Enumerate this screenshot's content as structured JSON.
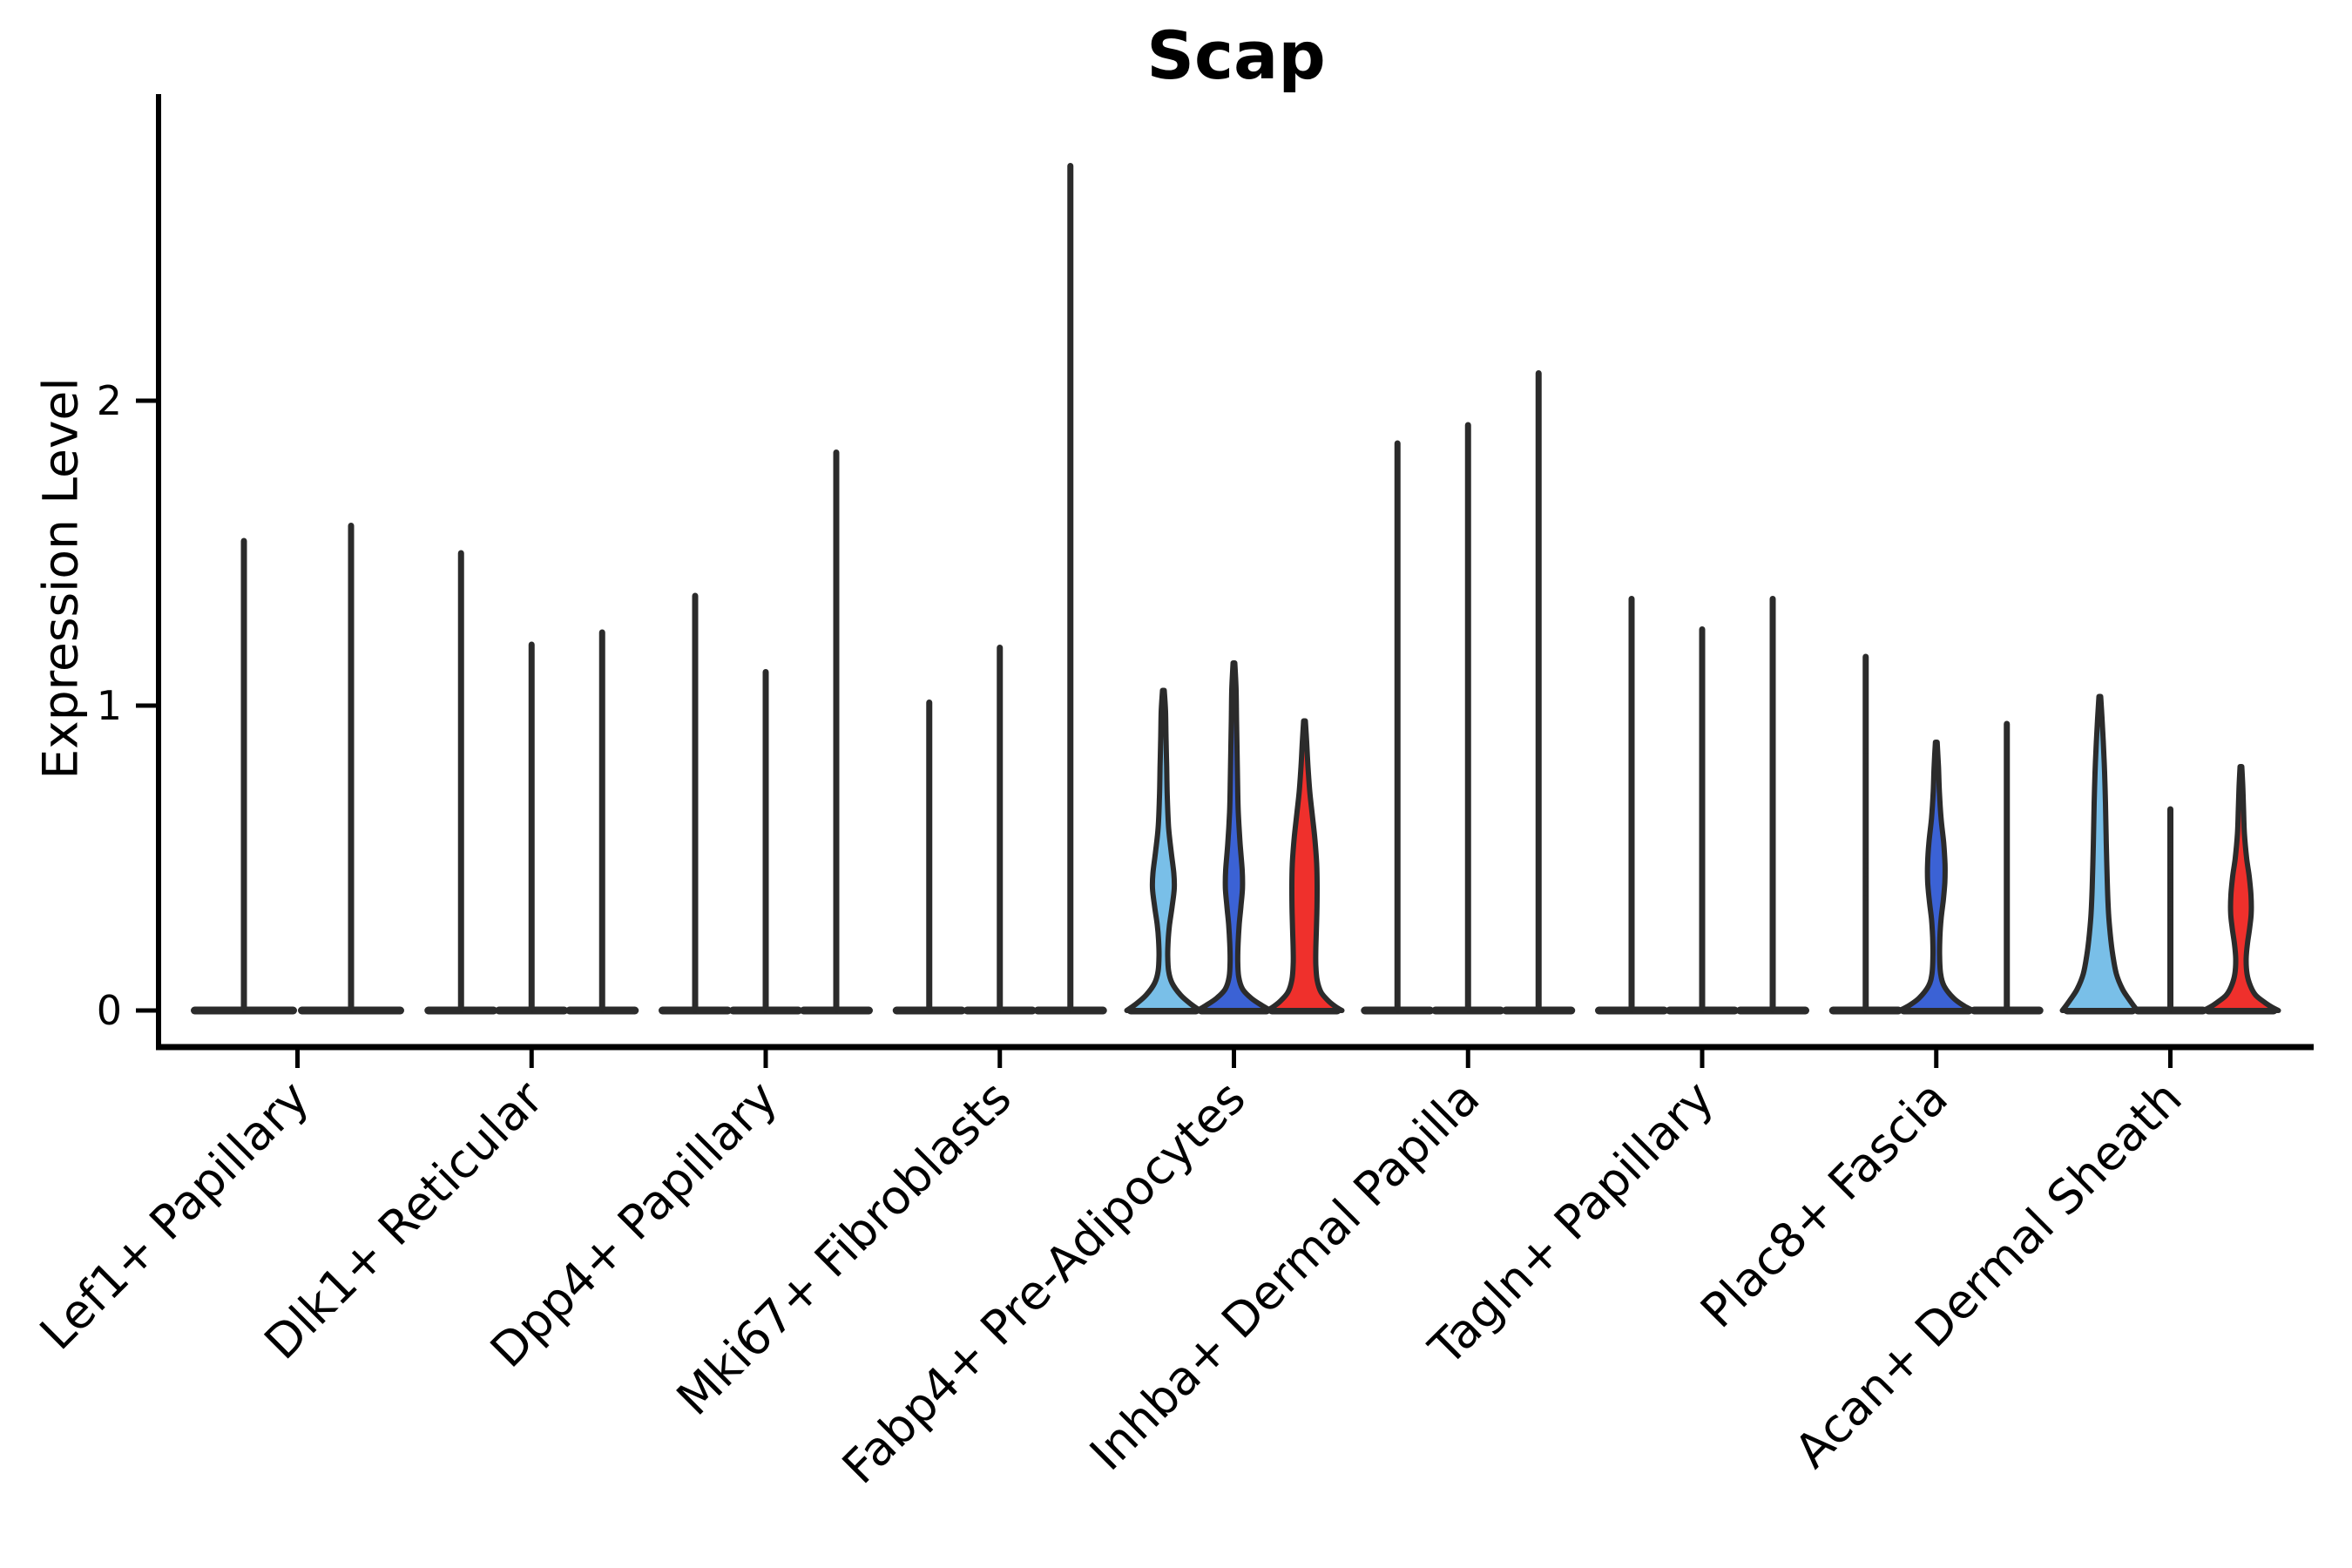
{
  "title": "Scap",
  "ylabel": "Expression Level",
  "chart_data": {
    "type": "violin",
    "title": "Scap",
    "xlabel": "",
    "ylabel": "Expression Level",
    "ylim": [
      0,
      2.95
    ],
    "yticks": [
      {
        "value": 0,
        "label": "0"
      },
      {
        "value": 1,
        "label": "1"
      },
      {
        "value": 2,
        "label": "2"
      }
    ],
    "grid": false,
    "legend": "none",
    "colors": {
      "light_blue": "#79BFE8",
      "blue": "#3B62D5",
      "red": "#EF302C",
      "line": "#2B2B2B",
      "axis": "#000000"
    },
    "note": "Each category shows per-sample violins of Scap expression; most distributions collapse to a spike at 0 with a thin line to the max value. Filled violins indicate samples with broader non-zero expression.",
    "categories": [
      {
        "label": "Lef1+ Papillary",
        "violins": [
          {
            "style": "spike",
            "max": 1.54
          },
          {
            "style": "spike",
            "max": 1.59
          }
        ]
      },
      {
        "label": "Dlk1+ Reticular",
        "violins": [
          {
            "style": "spike",
            "max": 1.5
          },
          {
            "style": "spike",
            "max": 1.2
          },
          {
            "style": "spike",
            "max": 1.24
          }
        ]
      },
      {
        "label": "Dpp4+ Papillary",
        "violins": [
          {
            "style": "spike",
            "max": 1.36
          },
          {
            "style": "spike",
            "max": 1.11
          },
          {
            "style": "spike",
            "max": 1.83
          }
        ]
      },
      {
        "label": "Mki67+ Fibroblasts",
        "violins": [
          {
            "style": "spike",
            "max": 1.01
          },
          {
            "style": "spike",
            "max": 1.19
          },
          {
            "style": "spike",
            "max": 2.77
          }
        ]
      },
      {
        "label": "Fabp4+ Pre-Adipocytes",
        "violins": [
          {
            "style": "filled",
            "color": "light_blue",
            "max": 1.05,
            "profile": [
              [
                1.05,
                1
              ],
              [
                0.98,
                2.5
              ],
              [
                0.9,
                3
              ],
              [
                0.8,
                3.8
              ],
              [
                0.7,
                4.5
              ],
              [
                0.6,
                6
              ],
              [
                0.52,
                9
              ],
              [
                0.45,
                12
              ],
              [
                0.4,
                12.5
              ],
              [
                0.34,
                10
              ],
              [
                0.28,
                7
              ],
              [
                0.23,
                5.5
              ],
              [
                0.18,
                5
              ],
              [
                0.13,
                6
              ],
              [
                0.09,
                10
              ],
              [
                0.05,
                20
              ],
              [
                0.02,
                32
              ],
              [
                0,
                42
              ]
            ]
          },
          {
            "style": "filled",
            "color": "blue",
            "max": 1.14,
            "profile": [
              [
                1.14,
                1
              ],
              [
                1.05,
                2.5
              ],
              [
                0.95,
                3
              ],
              [
                0.85,
                3.6
              ],
              [
                0.75,
                4.2
              ],
              [
                0.65,
                5
              ],
              [
                0.55,
                7
              ],
              [
                0.46,
                9.5
              ],
              [
                0.4,
                9.8
              ],
              [
                0.34,
                8
              ],
              [
                0.28,
                6
              ],
              [
                0.22,
                4.8
              ],
              [
                0.16,
                4.4
              ],
              [
                0.11,
                5.5
              ],
              [
                0.07,
                10
              ],
              [
                0.04,
                20
              ],
              [
                0.015,
                33
              ],
              [
                0,
                42
              ]
            ]
          },
          {
            "style": "filled",
            "color": "red",
            "max": 0.95,
            "profile": [
              [
                0.95,
                1
              ],
              [
                0.88,
                2.5
              ],
              [
                0.8,
                4
              ],
              [
                0.72,
                6
              ],
              [
                0.64,
                9
              ],
              [
                0.56,
                12
              ],
              [
                0.48,
                14
              ],
              [
                0.4,
                14.5
              ],
              [
                0.32,
                14.2
              ],
              [
                0.26,
                13.6
              ],
              [
                0.2,
                13
              ],
              [
                0.15,
                13
              ],
              [
                0.1,
                14.5
              ],
              [
                0.06,
                19
              ],
              [
                0.03,
                28
              ],
              [
                0.012,
                36
              ],
              [
                0,
                43
              ]
            ]
          }
        ]
      },
      {
        "label": "Inhba+ Dermal Papilla",
        "violins": [
          {
            "style": "spike",
            "max": 1.86
          },
          {
            "style": "spike",
            "max": 1.92
          },
          {
            "style": "spike",
            "max": 2.09
          }
        ]
      },
      {
        "label": "Tagln+ Papillary",
        "violins": [
          {
            "style": "spike",
            "max": 1.35
          },
          {
            "style": "spike",
            "max": 1.25
          },
          {
            "style": "spike",
            "max": 1.35
          }
        ]
      },
      {
        "label": "Plac8+ Fascia",
        "violins": [
          {
            "style": "spike",
            "max": 1.16,
            "dots": [
              0.85,
              0.8,
              0.52,
              0.49,
              0.46,
              0.43,
              0.4,
              0.37
            ]
          },
          {
            "style": "filled",
            "color": "blue",
            "max": 0.88,
            "profile": [
              [
                0.88,
                1
              ],
              [
                0.8,
                2.5
              ],
              [
                0.72,
                3.5
              ],
              [
                0.63,
                5.5
              ],
              [
                0.55,
                8.5
              ],
              [
                0.48,
                10
              ],
              [
                0.42,
                9.8
              ],
              [
                0.36,
                8
              ],
              [
                0.3,
                5.5
              ],
              [
                0.24,
                4.2
              ],
              [
                0.18,
                3.8
              ],
              [
                0.12,
                5
              ],
              [
                0.08,
                9
              ],
              [
                0.04,
                20
              ],
              [
                0.015,
                32
              ],
              [
                0,
                42
              ]
            ]
          },
          {
            "style": "spike",
            "max": 0.94
          }
        ]
      },
      {
        "label": "Acan+ Dermal Sheath",
        "violins": [
          {
            "style": "filled",
            "color": "light_blue",
            "max": 1.03,
            "profile": [
              [
                1.03,
                1
              ],
              [
                0.96,
                2.5
              ],
              [
                0.88,
                4
              ],
              [
                0.78,
                5.5
              ],
              [
                0.68,
                6.5
              ],
              [
                0.58,
                7.2
              ],
              [
                0.48,
                8
              ],
              [
                0.4,
                8.8
              ],
              [
                0.32,
                10
              ],
              [
                0.25,
                12
              ],
              [
                0.18,
                15
              ],
              [
                0.12,
                19
              ],
              [
                0.07,
                26
              ],
              [
                0.035,
                34
              ],
              [
                0.015,
                39
              ],
              [
                0,
                43
              ]
            ]
          },
          {
            "style": "spike",
            "max": 0.66,
            "dots": [
              0.56,
              0.53,
              0.5,
              0.47,
              0.44,
              0.41,
              0.38,
              0.35,
              0.32,
              0.29
            ]
          },
          {
            "style": "filled",
            "color": "red",
            "max": 0.8,
            "profile": [
              [
                0.8,
                1
              ],
              [
                0.73,
                2.2
              ],
              [
                0.66,
                3
              ],
              [
                0.58,
                4
              ],
              [
                0.5,
                6.5
              ],
              [
                0.44,
                9.5
              ],
              [
                0.38,
                11.5
              ],
              [
                0.32,
                11.8
              ],
              [
                0.27,
                10
              ],
              [
                0.22,
                7.5
              ],
              [
                0.17,
                6
              ],
              [
                0.12,
                7
              ],
              [
                0.08,
                11
              ],
              [
                0.05,
                17
              ],
              [
                0.025,
                28
              ],
              [
                0.01,
                36
              ],
              [
                0,
                43
              ]
            ]
          }
        ]
      }
    ]
  }
}
